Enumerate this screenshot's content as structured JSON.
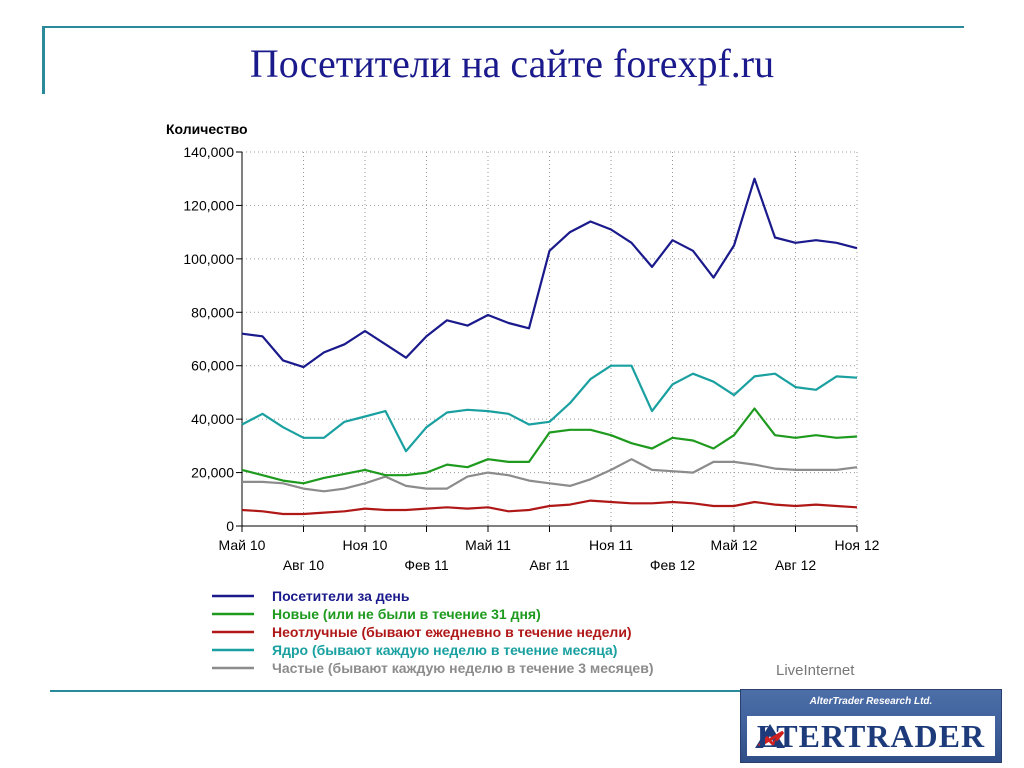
{
  "slide": {
    "title": "Посетители на сайте forexpf.ru"
  },
  "logo": {
    "top_text": "AlterTrader Research Ltd.",
    "main_text": "LTERTRADER"
  },
  "chart_data": {
    "type": "line",
    "ylabel": "Количество",
    "ylim": [
      0,
      140000
    ],
    "y_ticks": [
      "0",
      "20,000",
      "40,000",
      "60,000",
      "80,000",
      "100,000",
      "120,000",
      "140,000"
    ],
    "x_ticks_top": [
      {
        "label": "Май 10",
        "index": 0
      },
      {
        "label": "Ноя 10",
        "index": 6
      },
      {
        "label": "Май 11",
        "index": 12
      },
      {
        "label": "Ноя 11",
        "index": 18
      },
      {
        "label": "Май 12",
        "index": 24
      },
      {
        "label": "Ноя 12",
        "index": 30
      }
    ],
    "x_ticks_bottom": [
      {
        "label": "Авг 10",
        "index": 3
      },
      {
        "label": "Фев 11",
        "index": 9
      },
      {
        "label": "Авг 11",
        "index": 15
      },
      {
        "label": "Фев 12",
        "index": 21
      },
      {
        "label": "Авг 12",
        "index": 27
      }
    ],
    "x": [
      0,
      1,
      2,
      3,
      4,
      5,
      6,
      7,
      8,
      9,
      10,
      11,
      12,
      13,
      14,
      15,
      16,
      17,
      18,
      19,
      20,
      21,
      22,
      23,
      24,
      25,
      26,
      27,
      28,
      29,
      30
    ],
    "grid": true,
    "credit": "LiveInternet",
    "series": [
      {
        "name": "Посетители за день",
        "color": "#1a1a8c",
        "values": [
          72000,
          71000,
          62000,
          59500,
          65000,
          68000,
          73000,
          68000,
          63000,
          71000,
          77000,
          75000,
          79000,
          76000,
          74000,
          103000,
          110000,
          114000,
          111000,
          106000,
          97000,
          107000,
          103000,
          93000,
          105000,
          130000,
          108000,
          106000,
          107000,
          106000,
          104000
        ]
      },
      {
        "name": "Новые (или не были в течение 31 дня)",
        "color": "#1e9a1e",
        "values": [
          21000,
          19000,
          17000,
          16000,
          18000,
          19500,
          21000,
          19000,
          19000,
          20000,
          23000,
          22000,
          25000,
          24000,
          24000,
          35000,
          36000,
          36000,
          34000,
          31000,
          29000,
          33000,
          32000,
          29000,
          34000,
          44000,
          34000,
          33000,
          34000,
          33000,
          33500
        ]
      },
      {
        "name": "Неотлучные (бывают ежедневно в течение недели)",
        "color": "#b01818",
        "values": [
          6000,
          5500,
          4500,
          4500,
          5000,
          5500,
          6500,
          6000,
          6000,
          6500,
          7000,
          6500,
          7000,
          5500,
          6000,
          7500,
          8000,
          9500,
          9000,
          8500,
          8500,
          9000,
          8500,
          7500,
          7500,
          9000,
          8000,
          7500,
          8000,
          7500,
          7000
        ]
      },
      {
        "name": "Ядро (бывают каждую неделю в течение месяца)",
        "color": "#1aa0a0",
        "values": [
          38000,
          42000,
          37000,
          33000,
          33000,
          39000,
          41000,
          43000,
          28000,
          37000,
          42500,
          43500,
          43000,
          42000,
          38000,
          39000,
          46000,
          55000,
          60000,
          60000,
          43000,
          53000,
          57000,
          54000,
          49000,
          56000,
          57000,
          52000,
          51000,
          56000,
          55500
        ]
      },
      {
        "name": "Частые (бывают каждую неделю в течение 3 месяцев)",
        "color": "#8c8c8c",
        "values": [
          16500,
          16500,
          16000,
          14000,
          13000,
          14000,
          16000,
          18500,
          15000,
          14000,
          14000,
          18500,
          20000,
          19000,
          17000,
          16000,
          15000,
          17500,
          21000,
          25000,
          21000,
          20500,
          20000,
          24000,
          24000,
          23000,
          21500,
          21000,
          21000,
          21000,
          22000
        ]
      }
    ]
  }
}
